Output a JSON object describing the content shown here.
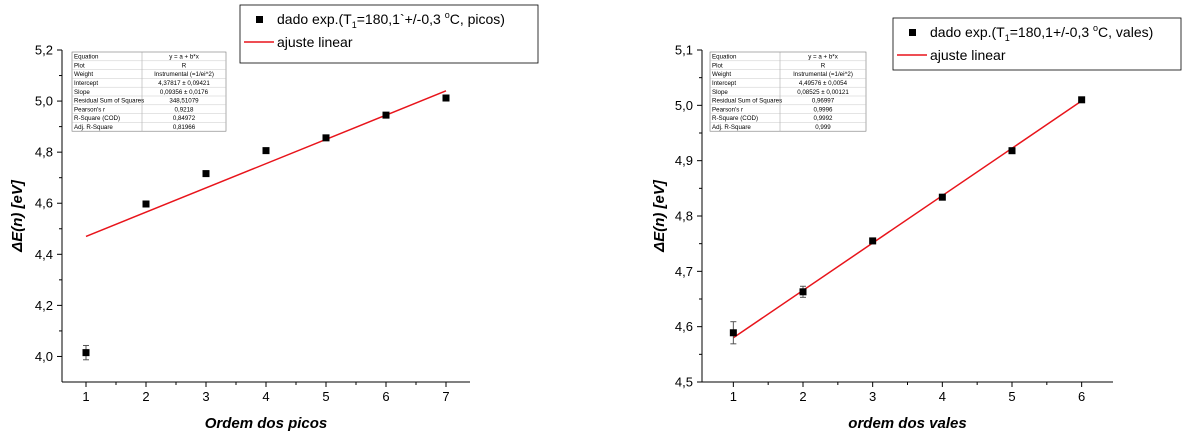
{
  "chart_data": [
    {
      "type": "scatter",
      "legend": {
        "items": [
          {
            "kind": "marker",
            "text": "dado exp.(T",
            "sub": "1",
            "rest": "=180,1`+/-0,3 ",
            "sup": "o",
            "end": "C, picos)"
          },
          {
            "kind": "line",
            "text": "ajuste linear"
          }
        ]
      },
      "xlabel": "Ordem dos picos",
      "ylabel_main": "ΔE(n) ",
      "ylabel_unit": "[eV]",
      "xlim": [
        0.6,
        7.4
      ],
      "ylim": [
        3.9,
        5.2
      ],
      "xticks": [
        1,
        2,
        3,
        4,
        5,
        6,
        7
      ],
      "xtick_labels": [
        "1",
        "2",
        "3",
        "4",
        "5",
        "6",
        "7"
      ],
      "yticks": [
        4.0,
        4.2,
        4.4,
        4.6,
        4.8,
        5.0,
        5.2
      ],
      "ytick_labels": [
        "4,0",
        "4,2",
        "4,4",
        "4,6",
        "4,8",
        "5,0",
        "5,2"
      ],
      "series": [
        {
          "x": [
            1,
            2,
            3,
            4,
            5,
            6,
            7
          ],
          "y": [
            4.015,
            4.597,
            4.716,
            4.806,
            4.856,
            4.945,
            5.012
          ],
          "err": [
            0.028,
            0,
            0,
            0,
            0,
            0,
            0
          ]
        }
      ],
      "fit": {
        "x": [
          1,
          7
        ],
        "y": [
          4.47,
          5.04
        ]
      },
      "stats": [
        [
          "Equation",
          "y = a + b*x"
        ],
        [
          "Plot",
          "R"
        ],
        [
          "Weight",
          "Instrumental (=1/ei^2)"
        ],
        [
          "Intercept",
          "4,37817 ± 0,09421"
        ],
        [
          "Slope",
          "0,09356 ± 0,0176"
        ],
        [
          "Residual Sum of Squares",
          "348,51079"
        ],
        [
          "Pearson's r",
          "0,9218"
        ],
        [
          "R-Square (COD)",
          "0,84972"
        ],
        [
          "Adj. R-Square",
          "0,81966"
        ]
      ]
    },
    {
      "type": "scatter",
      "legend": {
        "items": [
          {
            "kind": "marker",
            "text": "dado exp.(T",
            "sub": "1",
            "rest": "=180,1+/-0,3 ",
            "sup": "o",
            "end": "C, vales)"
          },
          {
            "kind": "line",
            "text": "ajuste linear"
          }
        ]
      },
      "xlabel": "ordem dos vales",
      "ylabel_main": "ΔE(n) ",
      "ylabel_unit": "[eV]",
      "xlim": [
        0.55,
        6.45
      ],
      "ylim": [
        4.5,
        5.1
      ],
      "xticks": [
        1,
        2,
        3,
        4,
        5,
        6
      ],
      "xtick_labels": [
        "1",
        "2",
        "3",
        "4",
        "5",
        "6"
      ],
      "yticks": [
        4.5,
        4.6,
        4.7,
        4.8,
        4.9,
        5.0,
        5.1
      ],
      "ytick_labels": [
        "4,5",
        "4,6",
        "4,7",
        "4,8",
        "4,9",
        "5,0",
        "5,1"
      ],
      "series": [
        {
          "x": [
            1,
            2,
            3,
            4,
            5,
            6
          ],
          "y": [
            4.589,
            4.663,
            4.755,
            4.834,
            4.918,
            5.01
          ],
          "err": [
            0.02,
            0.01,
            0.005,
            0.005,
            0.005,
            0.003
          ]
        }
      ],
      "fit": {
        "x": [
          1,
          6
        ],
        "y": [
          4.58,
          5.008
        ]
      },
      "stats": [
        [
          "Equation",
          "y = a + b*x"
        ],
        [
          "Plot",
          "R"
        ],
        [
          "Weight",
          "Instrumental (=1/ei^2)"
        ],
        [
          "Intercept",
          "4,49576 ± 0,0054"
        ],
        [
          "Slope",
          "0,08525 ± 0,00121"
        ],
        [
          "Residual Sum of Squares",
          "0,96997"
        ],
        [
          "Pearson's r",
          "0,9996"
        ],
        [
          "R-Square (COD)",
          "0,9992"
        ],
        [
          "Adj. R-Square",
          "0,999"
        ]
      ]
    }
  ],
  "colors": {
    "marker": "#000000",
    "fit_line": "#e8141b",
    "axis": "#000000",
    "error_bar": "#555555"
  }
}
